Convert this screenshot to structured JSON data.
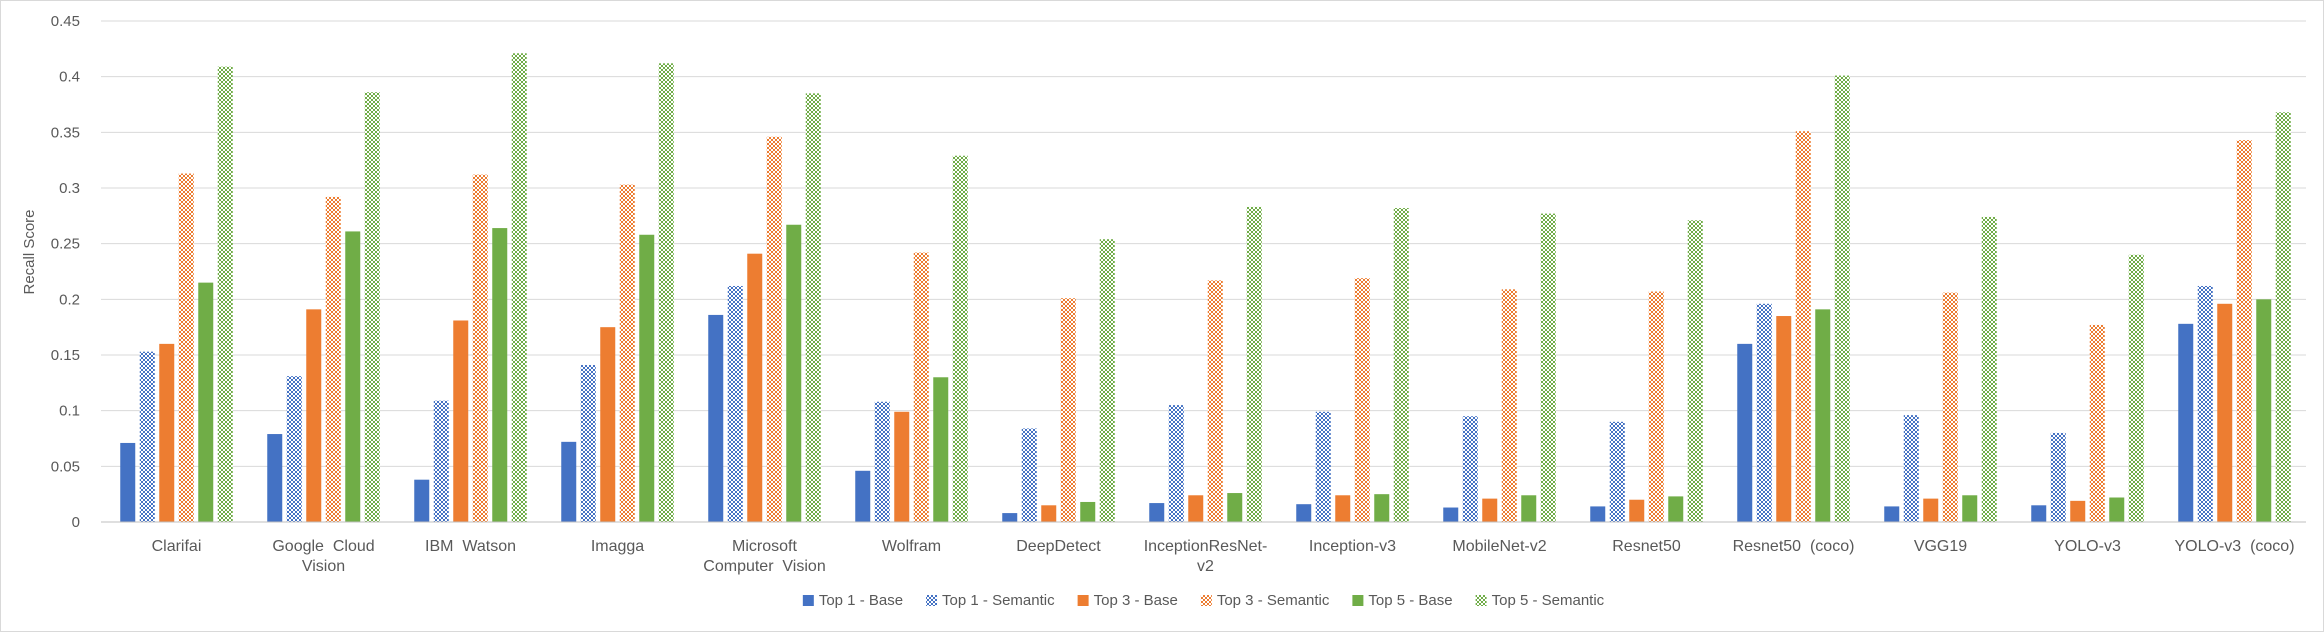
{
  "chart_data": {
    "type": "bar",
    "ylabel": "Recall Score",
    "ylim": [
      0,
      0.45
    ],
    "yticks": [
      "0",
      "0.05",
      "0.1",
      "0.15",
      "0.2",
      "0.25",
      "0.3",
      "0.35",
      "0.4",
      "0.45"
    ],
    "grid": true,
    "legend_position": "bottom",
    "categories": [
      [
        "Clarifai"
      ],
      [
        "Google  Cloud",
        "Vision"
      ],
      [
        "IBM  Watson"
      ],
      [
        "Imagga"
      ],
      [
        "Microsoft",
        "Computer  Vision"
      ],
      [
        "Wolfram"
      ],
      [
        "DeepDetect"
      ],
      [
        "InceptionResNet-",
        "v2"
      ],
      [
        "Inception-v3"
      ],
      [
        "MobileNet-v2"
      ],
      [
        "Resnet50"
      ],
      [
        "Resnet50  (coco)"
      ],
      [
        "VGG19"
      ],
      [
        "YOLO-v3"
      ],
      [
        "YOLO-v3  (coco)"
      ]
    ],
    "series": [
      {
        "name": "Top 1 - Base",
        "color": "#4472c4",
        "pattern": "solid",
        "values": [
          0.071,
          0.079,
          0.038,
          0.072,
          0.186,
          0.046,
          0.008,
          0.017,
          0.016,
          0.013,
          0.014,
          0.16,
          0.014,
          0.015,
          0.178
        ]
      },
      {
        "name": "Top 1 - Semantic",
        "color": "#4472c4",
        "pattern": "checker",
        "values": [
          0.153,
          0.131,
          0.109,
          0.141,
          0.212,
          0.108,
          0.084,
          0.105,
          0.099,
          0.095,
          0.09,
          0.196,
          0.096,
          0.08,
          0.212
        ]
      },
      {
        "name": "Top 3 - Base",
        "color": "#ed7d31",
        "pattern": "solid",
        "values": [
          0.16,
          0.191,
          0.181,
          0.175,
          0.241,
          0.099,
          0.015,
          0.024,
          0.024,
          0.021,
          0.02,
          0.185,
          0.021,
          0.019,
          0.196
        ]
      },
      {
        "name": "Top 3 - Semantic",
        "color": "#ed7d31",
        "pattern": "checker",
        "values": [
          0.313,
          0.292,
          0.312,
          0.303,
          0.346,
          0.242,
          0.201,
          0.217,
          0.219,
          0.209,
          0.207,
          0.351,
          0.206,
          0.177,
          0.343
        ]
      },
      {
        "name": "Top 5 - Base",
        "color": "#70ad47",
        "pattern": "solid",
        "values": [
          0.215,
          0.261,
          0.264,
          0.258,
          0.267,
          0.13,
          0.018,
          0.026,
          0.025,
          0.024,
          0.023,
          0.191,
          0.024,
          0.022,
          0.2
        ]
      },
      {
        "name": "Top 5 - Semantic",
        "color": "#70ad47",
        "pattern": "checker",
        "values": [
          0.409,
          0.386,
          0.421,
          0.412,
          0.385,
          0.329,
          0.254,
          0.283,
          0.282,
          0.277,
          0.271,
          0.401,
          0.274,
          0.24,
          0.368
        ]
      }
    ]
  }
}
